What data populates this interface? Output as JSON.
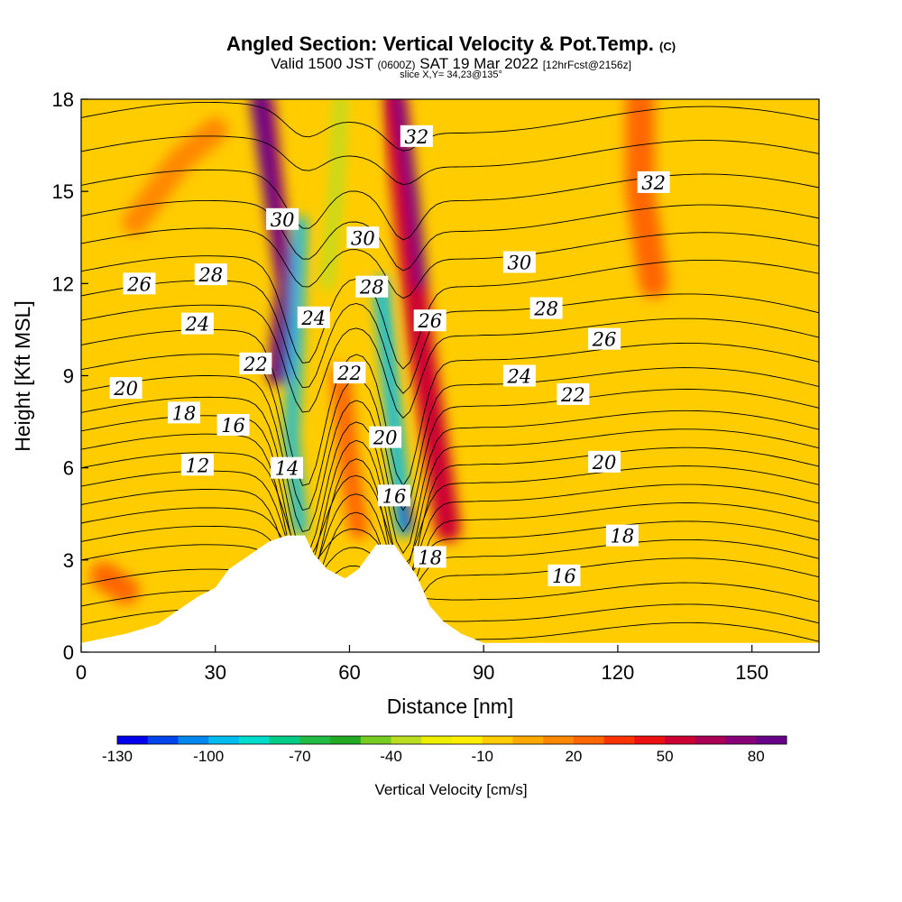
{
  "header": {
    "title": "Angled Section: Vertical Velocity & Pot.Temp.",
    "title_unit": "(C)",
    "subtitle_a": "Valid 1500 JST",
    "subtitle_b": "(0600Z)",
    "subtitle_c": "SAT 19 Mar 2022",
    "subtitle_d": "[12hrFcst@2156z]",
    "slice": "slice X,Y= 34,23@135°"
  },
  "chart_data": {
    "type": "heatmap",
    "title": "Angled Section: Vertical Velocity & Pot.Temp.",
    "xlabel": "Distance [nm]",
    "ylabel": "Height [Kft MSL]",
    "xlim": [
      0,
      165
    ],
    "ylim": [
      0,
      18
    ],
    "x_ticks": [
      0,
      30,
      60,
      90,
      120,
      150
    ],
    "y_ticks": [
      0,
      3,
      6,
      9,
      12,
      15,
      18
    ],
    "colorbar": {
      "title": "Vertical Velocity [cm/s]",
      "tick_labels": [
        -130,
        -100,
        -70,
        -40,
        -10,
        20,
        50,
        80
      ],
      "colors": [
        "#0000ee",
        "#0044ee",
        "#0088ee",
        "#00bbee",
        "#00ddcc",
        "#00cc88",
        "#22bb44",
        "#22aa22",
        "#77cc22",
        "#bbdd22",
        "#eeee00",
        "#ffee00",
        "#ffcc00",
        "#ffaa00",
        "#ff8800",
        "#ff6600",
        "#ff3300",
        "#ee1111",
        "#cc0033",
        "#aa0055",
        "#880077",
        "#660088"
      ]
    },
    "terrain_profile": [
      {
        "x": 0,
        "y": 0.3
      },
      {
        "x": 10,
        "y": 0.6
      },
      {
        "x": 17,
        "y": 0.9
      },
      {
        "x": 20,
        "y": 1.2
      },
      {
        "x": 23,
        "y": 1.5
      },
      {
        "x": 26,
        "y": 1.8
      },
      {
        "x": 30,
        "y": 2.1
      },
      {
        "x": 33,
        "y": 2.7
      },
      {
        "x": 36,
        "y": 3.0
      },
      {
        "x": 39,
        "y": 3.3
      },
      {
        "x": 42,
        "y": 3.6
      },
      {
        "x": 46,
        "y": 3.8
      },
      {
        "x": 50,
        "y": 3.8
      },
      {
        "x": 52,
        "y": 3.2
      },
      {
        "x": 55,
        "y": 2.7
      },
      {
        "x": 59,
        "y": 2.4
      },
      {
        "x": 62,
        "y": 2.7
      },
      {
        "x": 66,
        "y": 3.5
      },
      {
        "x": 70,
        "y": 3.5
      },
      {
        "x": 72,
        "y": 3.1
      },
      {
        "x": 75,
        "y": 2.5
      },
      {
        "x": 78,
        "y": 1.5
      },
      {
        "x": 81,
        "y": 1.0
      },
      {
        "x": 85,
        "y": 0.6
      },
      {
        "x": 90,
        "y": 0.3
      },
      {
        "x": 165,
        "y": 0.3
      }
    ],
    "velocity_features": [
      {
        "name": "lee-downdraft-1",
        "x": 47,
        "y": 7.5,
        "value": -100
      },
      {
        "name": "lee-downdraft-2",
        "x": 72,
        "y": 4.5,
        "value": -130
      },
      {
        "name": "updraft-band-1",
        "x": 42,
        "y": 16.0,
        "value": 80
      },
      {
        "name": "updraft-band-2",
        "x": 72,
        "y": 15.0,
        "value": 80
      },
      {
        "name": "updraft-low",
        "x": 80,
        "y": 6.0,
        "value": 50
      },
      {
        "name": "mid-updraft",
        "x": 58,
        "y": 7.5,
        "value": 20
      },
      {
        "name": "upper-right",
        "x": 125,
        "y": 15.0,
        "value": 20
      },
      {
        "name": "background",
        "x": 140,
        "y": 9.0,
        "value": 0
      }
    ],
    "isentrope_labels": [
      {
        "text": "32",
        "x": 75,
        "y": 16.8
      },
      {
        "text": "32",
        "x": 128,
        "y": 15.3
      },
      {
        "text": "30",
        "x": 45,
        "y": 14.1
      },
      {
        "text": "30",
        "x": 63,
        "y": 13.5
      },
      {
        "text": "30",
        "x": 98,
        "y": 12.7
      },
      {
        "text": "28",
        "x": 29,
        "y": 12.3
      },
      {
        "text": "28",
        "x": 65,
        "y": 11.9
      },
      {
        "text": "28",
        "x": 104,
        "y": 11.2
      },
      {
        "text": "26",
        "x": 13,
        "y": 12.0
      },
      {
        "text": "26",
        "x": 78,
        "y": 10.8
      },
      {
        "text": "26",
        "x": 117,
        "y": 10.2
      },
      {
        "text": "24",
        "x": 26,
        "y": 10.7
      },
      {
        "text": "24",
        "x": 52,
        "y": 10.9
      },
      {
        "text": "24",
        "x": 98,
        "y": 9.0
      },
      {
        "text": "22",
        "x": 39,
        "y": 9.4
      },
      {
        "text": "22",
        "x": 60,
        "y": 9.1
      },
      {
        "text": "22",
        "x": 110,
        "y": 8.4
      },
      {
        "text": "20",
        "x": 10,
        "y": 8.6
      },
      {
        "text": "20",
        "x": 68,
        "y": 7.0
      },
      {
        "text": "20",
        "x": 117,
        "y": 6.2
      },
      {
        "text": "18",
        "x": 23,
        "y": 7.8
      },
      {
        "text": "18",
        "x": 78,
        "y": 3.1
      },
      {
        "text": "18",
        "x": 121,
        "y": 3.8
      },
      {
        "text": "16",
        "x": 34,
        "y": 7.4
      },
      {
        "text": "16",
        "x": 70,
        "y": 5.1
      },
      {
        "text": "16",
        "x": 108,
        "y": 2.5
      },
      {
        "text": "14",
        "x": 46,
        "y": 6.0
      },
      {
        "text": "12",
        "x": 26,
        "y": 6.1
      }
    ]
  }
}
